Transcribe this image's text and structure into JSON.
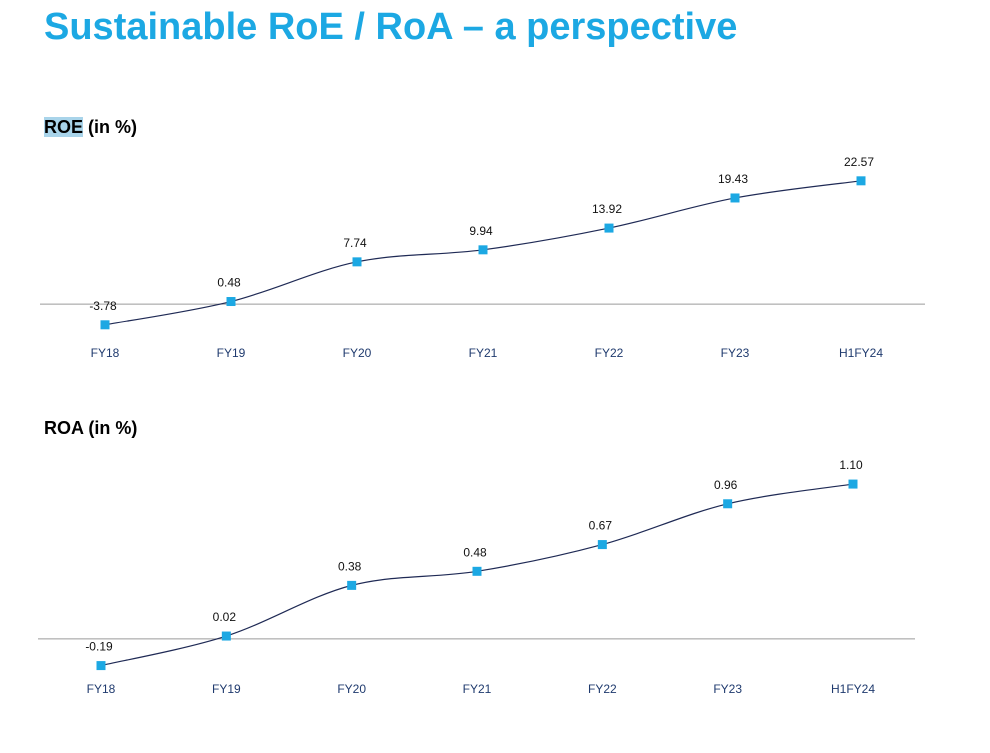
{
  "slide": {
    "title": "Sustainable RoE / RoA – a perspective"
  },
  "colors": {
    "title": "#1ca8e3",
    "marker": "#1ca8e3",
    "line": "#1f2a55",
    "axis": "#9a9a9a",
    "tick_label": "#1f3a6e"
  },
  "chart_data": [
    {
      "type": "line",
      "title_main": "ROE",
      "title_suffix": " (in %)",
      "categories": [
        "FY18",
        "FY19",
        "FY20",
        "FY21",
        "FY22",
        "FY23",
        "H1FY24"
      ],
      "values": [
        -3.78,
        0.48,
        7.74,
        9.94,
        13.92,
        19.43,
        22.57
      ],
      "labels": [
        "-3.78",
        "0.48",
        "7.74",
        "9.94",
        "13.92",
        "19.43",
        "22.57"
      ],
      "ylim": [
        -4,
        24
      ]
    },
    {
      "type": "line",
      "title_main": "ROA",
      "title_suffix": " (in %)",
      "categories": [
        "FY18",
        "FY19",
        "FY20",
        "FY21",
        "FY22",
        "FY23",
        "H1FY24"
      ],
      "values": [
        -0.19,
        0.02,
        0.38,
        0.48,
        0.67,
        0.96,
        1.1
      ],
      "labels": [
        "-0.19",
        "0.02",
        "0.38",
        "0.48",
        "0.67",
        "0.96",
        "1.10"
      ],
      "ylim": [
        -0.2,
        1.2
      ]
    }
  ]
}
